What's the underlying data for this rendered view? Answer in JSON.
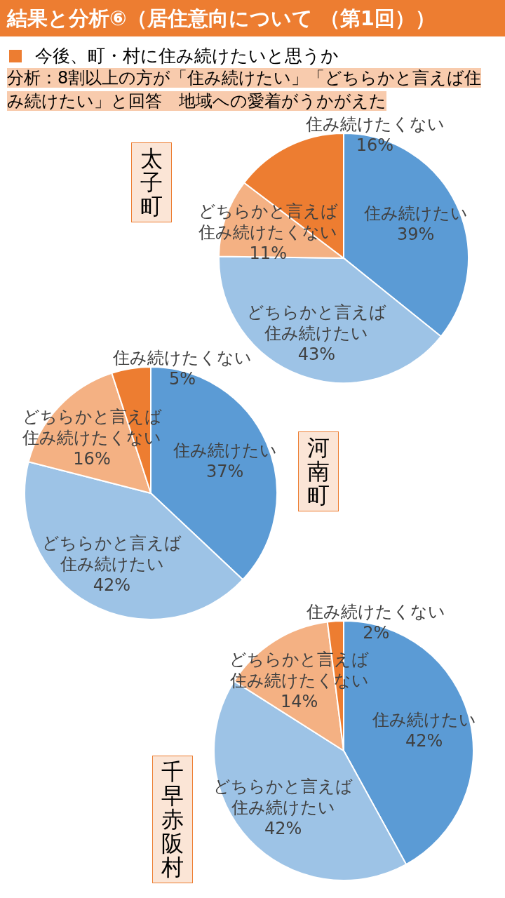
{
  "chart_data": [
    {
      "type": "pie",
      "title": "太子町",
      "annotations": [
        "結果と分析⑥（居住意向について （第1回））",
        "今後、町・村に住み続けたいと思うか",
        "分析：8割以上の方が「住み続けたい」「どちらかと言えば住み続けたい」と回答　地域への愛着がうかがえた"
      ],
      "categories": [
        "住み続けたい",
        "どちらかと言えば住み続けたい",
        "どちらかと言えば住み続けたくない",
        "住み続けたくない"
      ],
      "values": [
        39,
        43,
        11,
        16
      ],
      "colors": [
        "#5b9bd5",
        "#9dc3e6",
        "#f4b183",
        "#ed7d31"
      ],
      "value_labels": [
        "39%",
        "43%",
        "11%",
        "16%"
      ]
    },
    {
      "type": "pie",
      "title": "河南町",
      "categories": [
        "住み続けたい",
        "どちらかと言えば住み続けたい",
        "どちらかと言えば住み続けたくない",
        "住み続けたくない"
      ],
      "values": [
        37,
        42,
        16,
        5
      ],
      "colors": [
        "#5b9bd5",
        "#9dc3e6",
        "#f4b183",
        "#ed7d31"
      ],
      "value_labels": [
        "37%",
        "42%",
        "16%",
        "5%"
      ]
    },
    {
      "type": "pie",
      "title": "千早赤阪村",
      "categories": [
        "住み続けたい",
        "どちらかと言えば住み続けたい",
        "どちらかと言えば住み続けたくない",
        "住み続けたくない"
      ],
      "values": [
        42,
        42,
        14,
        2
      ],
      "colors": [
        "#5b9bd5",
        "#9dc3e6",
        "#f4b183",
        "#ed7d31"
      ],
      "value_labels": [
        "42%",
        "42%",
        "14%",
        "2%"
      ]
    }
  ]
}
